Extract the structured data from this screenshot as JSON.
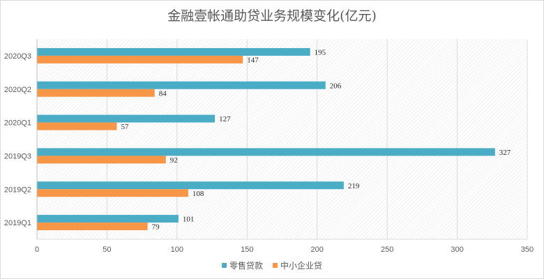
{
  "chart_data": {
    "type": "bar",
    "orientation": "horizontal",
    "title": "金融壹帐通助贷业务规模变化(亿元)",
    "categories": [
      "2019Q1",
      "2019Q2",
      "2019Q3",
      "2020Q1",
      "2020Q2",
      "2020Q3"
    ],
    "series": [
      {
        "name": "零售贷款",
        "values": [
          101,
          219,
          327,
          127,
          206,
          195
        ],
        "color": "#4bacc6"
      },
      {
        "name": "中小企业贷",
        "values": [
          79,
          108,
          92,
          57,
          84,
          147
        ],
        "color": "#f79646"
      }
    ],
    "xlim": [
      0,
      350
    ],
    "xticks": [
      0,
      50,
      100,
      150,
      200,
      250,
      300,
      350
    ],
    "grid": true,
    "legend_position": "bottom"
  }
}
